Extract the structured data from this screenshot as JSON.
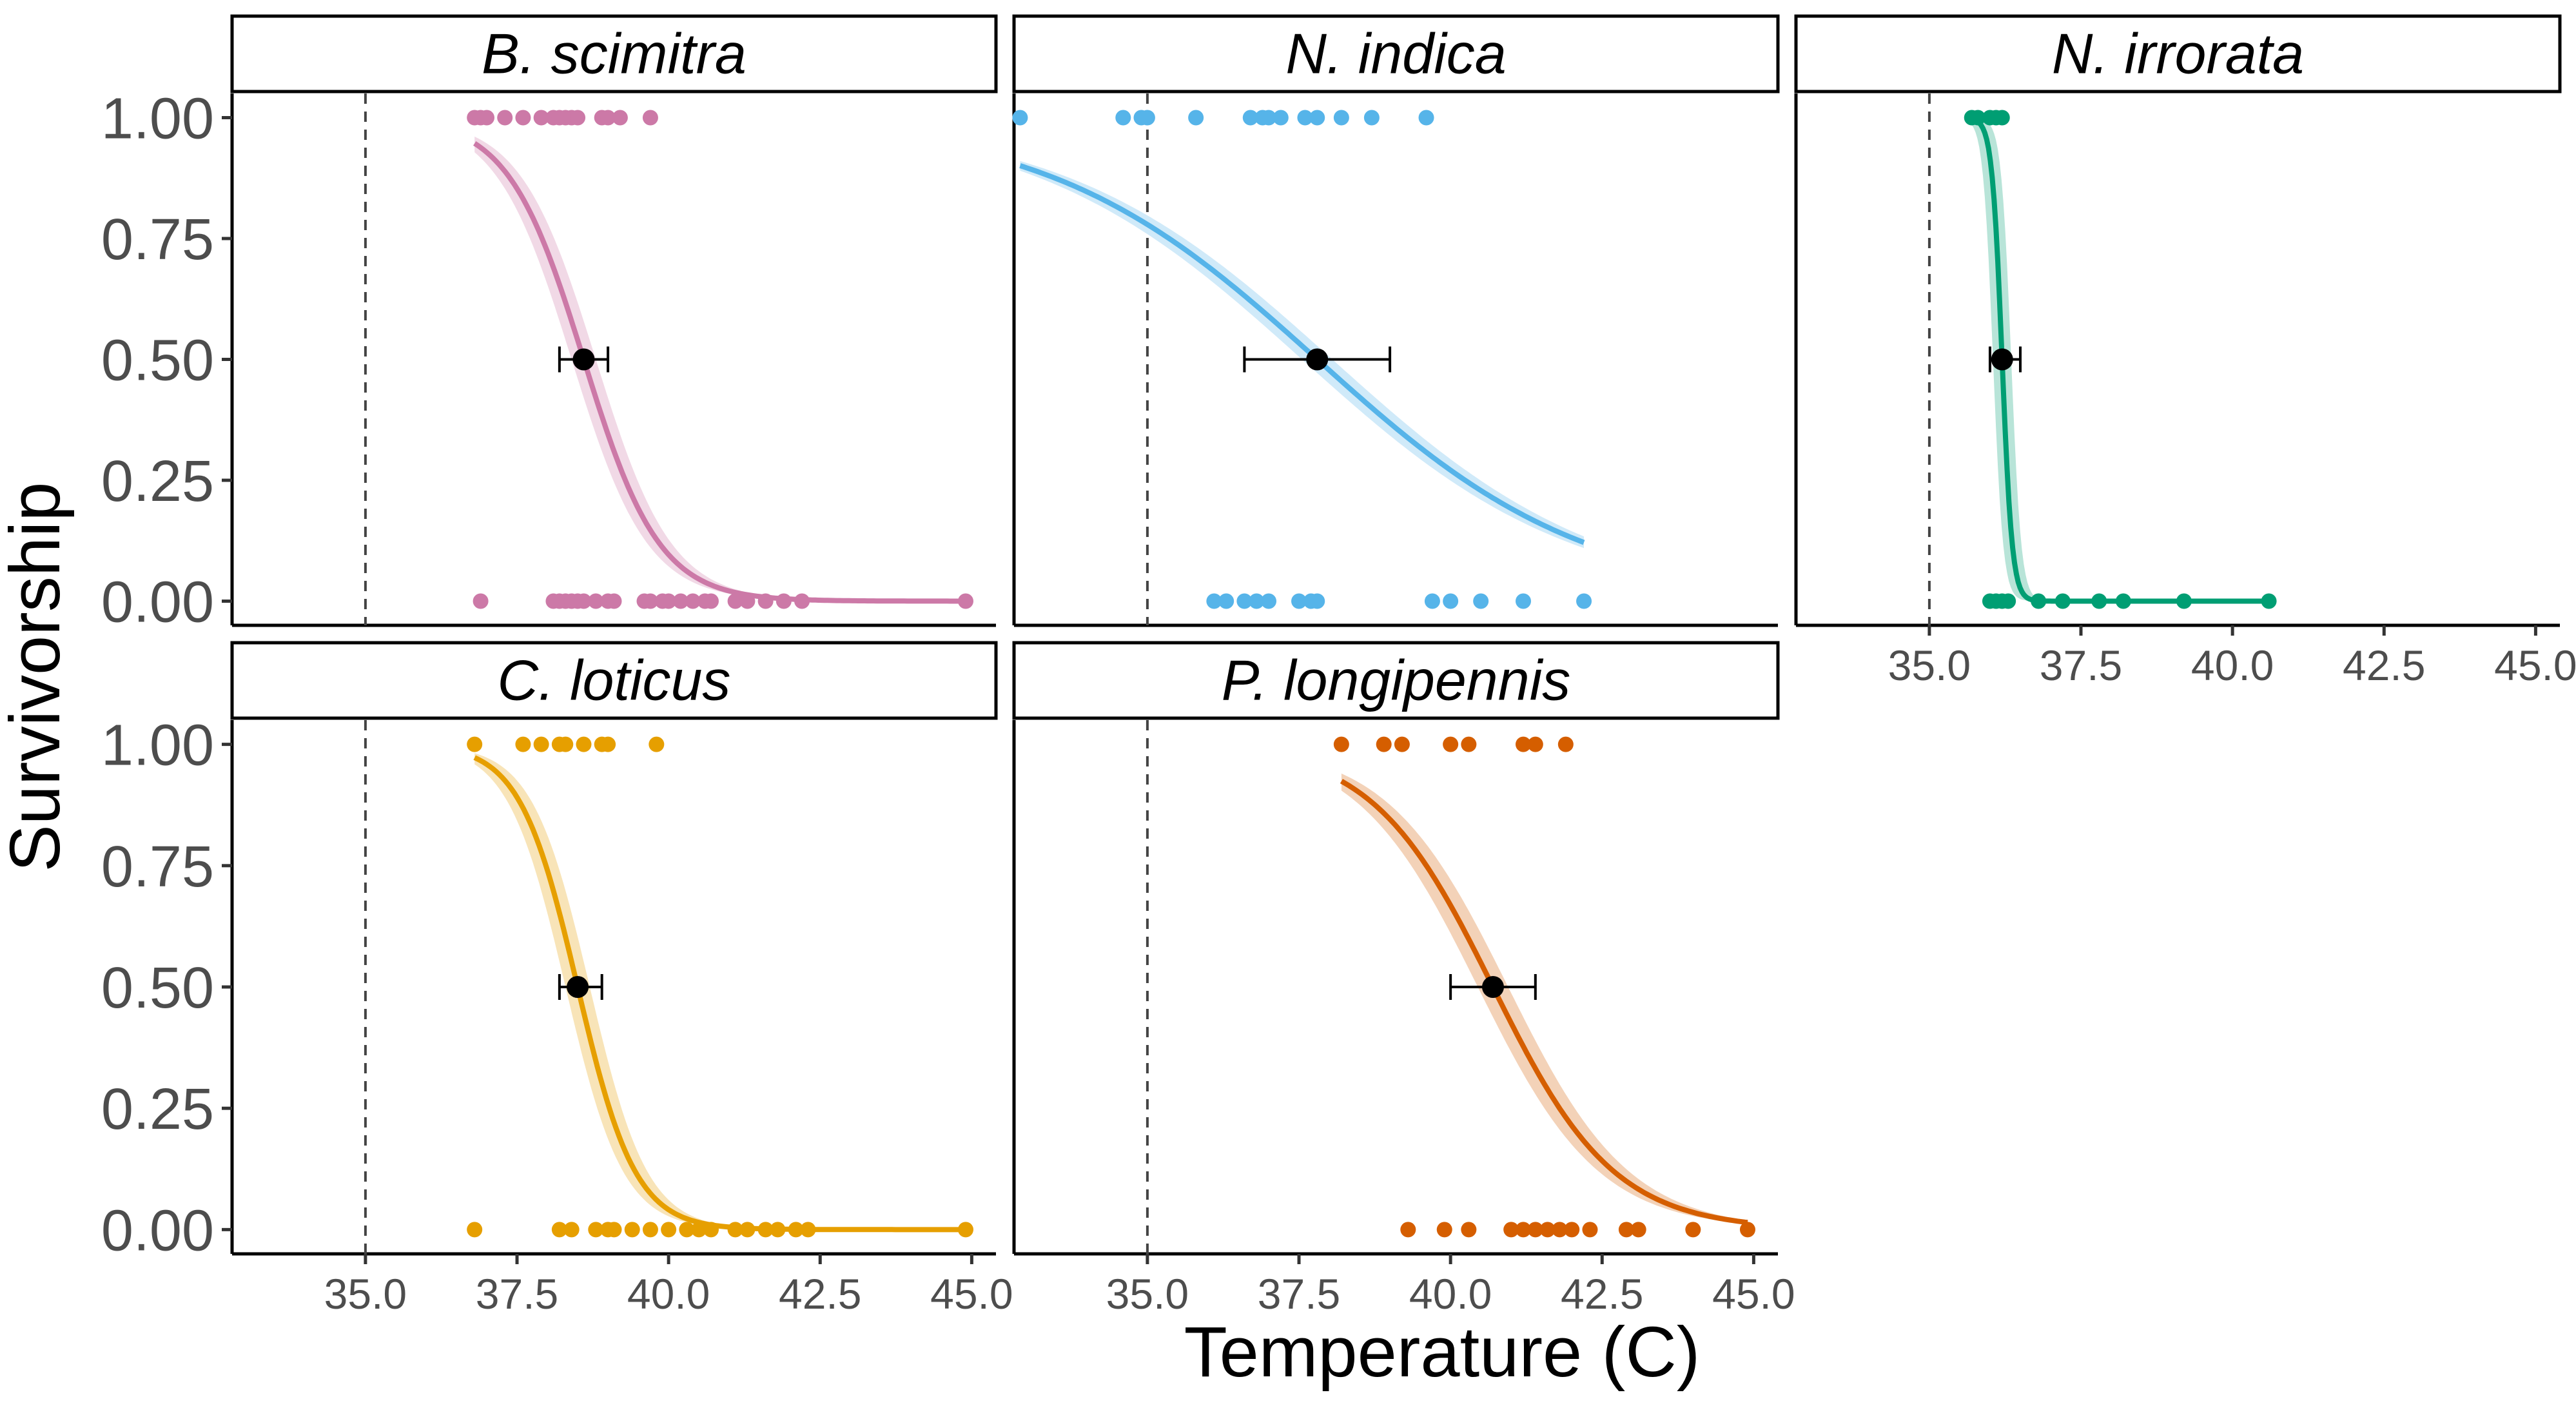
{
  "figure": {
    "ylabel": "Survivorship",
    "xlabel": "Temperature (C)"
  },
  "chart_data": {
    "type": "scatter",
    "subtype": "faceted-logistic-regression",
    "xlabel": "Temperature (C)",
    "ylabel": "Survivorship",
    "xlim": [
      32.8,
      45.4
    ],
    "ylim": [
      -0.05,
      1.05
    ],
    "x_ticks": [
      "35.0",
      "37.5",
      "40.0",
      "42.5",
      "45.0"
    ],
    "y_ticks": [
      "0.00",
      "0.25",
      "0.50",
      "0.75",
      "1.00"
    ],
    "reference_line_x": 35.0,
    "grid": false,
    "legend": "none",
    "panels": [
      {
        "title": "B. scimitra",
        "color": "#CC79A7",
        "fit": {
          "x_range": [
            36.8,
            44.9
          ],
          "midpoint": 38.6,
          "slope": 1.6,
          "ci_width": 0.4
        },
        "midpoint_point": {
          "x": 38.6,
          "y": 0.5,
          "xerr": [
            38.2,
            39.0
          ]
        },
        "points_survived": [
          36.8,
          36.9,
          37.0,
          37.3,
          37.6,
          37.9,
          38.1,
          38.2,
          38.3,
          38.4,
          38.5,
          38.9,
          39.0,
          39.2,
          39.7
        ],
        "points_died": [
          36.9,
          38.1,
          38.2,
          38.3,
          38.4,
          38.5,
          38.6,
          38.8,
          39.0,
          39.1,
          39.6,
          39.7,
          39.9,
          40.0,
          40.2,
          40.4,
          40.6,
          40.7,
          41.1,
          41.3,
          41.6,
          41.9,
          42.2,
          44.9
        ]
      },
      {
        "title": "N. indica",
        "color": "#56B4E9",
        "fit": {
          "x_range": [
            32.9,
            42.2
          ],
          "midpoint": 37.8,
          "slope": 0.45,
          "ci_width": 0.5
        },
        "midpoint_point": {
          "x": 37.8,
          "y": 0.5,
          "xerr": [
            36.6,
            39.0
          ]
        },
        "points_survived": [
          32.9,
          34.6,
          34.9,
          35.0,
          35.8,
          36.7,
          36.9,
          37.0,
          37.2,
          37.6,
          37.8,
          38.2,
          38.7,
          39.6
        ],
        "points_died": [
          36.1,
          36.3,
          36.6,
          36.8,
          37.0,
          37.5,
          37.7,
          37.8,
          39.7,
          40.0,
          40.5,
          41.2,
          42.2
        ]
      },
      {
        "title": "N. irrorata",
        "color": "#009E73",
        "fit": {
          "x_range": [
            35.7,
            40.6
          ],
          "midpoint": 36.2,
          "slope": 12,
          "ci_width": 0.3
        },
        "midpoint_point": {
          "x": 36.2,
          "y": 0.5,
          "xerr": [
            36.0,
            36.5
          ]
        },
        "points_survived": [
          35.7,
          35.8,
          36.0,
          36.1,
          36.2
        ],
        "points_died": [
          36.0,
          36.1,
          36.2,
          36.3,
          36.8,
          37.2,
          37.8,
          38.2,
          39.2,
          40.6
        ]
      },
      {
        "title": "C. loticus",
        "color": "#E69F00",
        "fit": {
          "x_range": [
            36.8,
            44.9
          ],
          "midpoint": 38.5,
          "slope": 2.1,
          "ci_width": 0.4
        },
        "midpoint_point": {
          "x": 38.5,
          "y": 0.5,
          "xerr": [
            38.2,
            38.9
          ]
        },
        "points_survived": [
          36.8,
          37.6,
          37.9,
          38.2,
          38.3,
          38.6,
          38.9,
          39.0,
          39.8
        ],
        "points_died": [
          36.8,
          38.2,
          38.4,
          38.8,
          39.0,
          39.1,
          39.4,
          39.7,
          40.0,
          40.3,
          40.5,
          40.7,
          41.1,
          41.3,
          41.6,
          41.8,
          42.1,
          42.3,
          44.9
        ]
      },
      {
        "title": "P. longipennis",
        "color": "#D55E00",
        "fit": {
          "x_range": [
            38.2,
            44.9
          ],
          "midpoint": 40.7,
          "slope": 1.0,
          "ci_width": 0.5
        },
        "midpoint_point": {
          "x": 40.7,
          "y": 0.5,
          "xerr": [
            40.0,
            41.4
          ]
        },
        "points_survived": [
          38.2,
          38.9,
          39.2,
          40.0,
          40.3,
          41.2,
          41.4,
          41.9
        ],
        "points_died": [
          39.3,
          39.9,
          40.3,
          41.0,
          41.2,
          41.4,
          41.6,
          41.8,
          42.0,
          42.3,
          42.9,
          43.1,
          44.0,
          44.9
        ]
      }
    ]
  }
}
